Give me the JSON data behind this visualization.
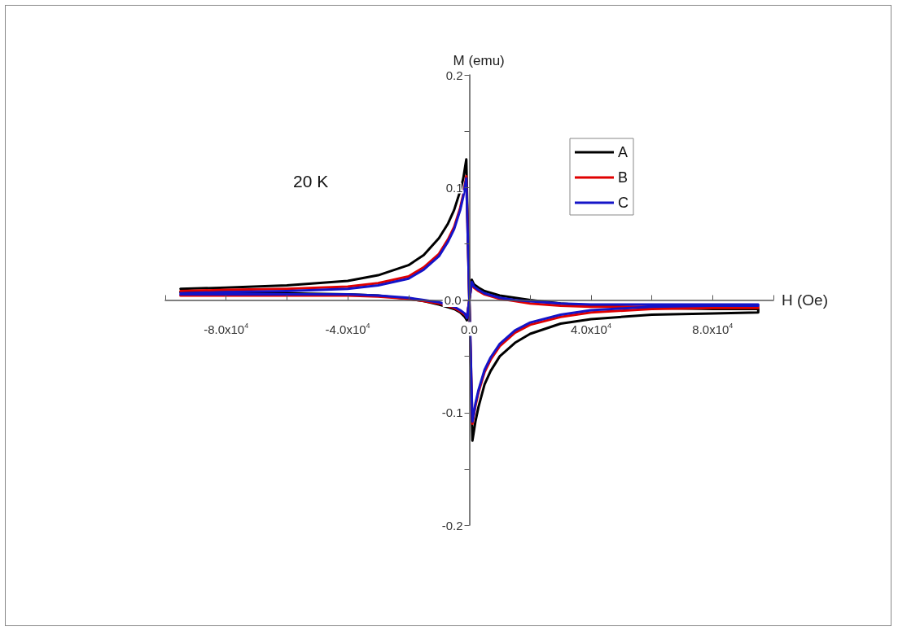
{
  "chart_data": {
    "type": "line",
    "xlabel": "H (Oe)",
    "ylabel": "M (emu)",
    "annotations": [
      "20 K"
    ],
    "xlim": [
      -100000,
      100000
    ],
    "xticks": [
      {
        "value": -100000,
        "label": null
      },
      {
        "value": -80000,
        "label": "-8.0x10$^{4}$"
      },
      {
        "value": -60000,
        "label": null
      },
      {
        "value": -40000,
        "label": "-4.0x10$^{4}$"
      },
      {
        "value": -20000,
        "label": null
      },
      {
        "value": 0,
        "label": "0.0"
      },
      {
        "value": 20000,
        "label": null
      },
      {
        "value": 40000,
        "label": "4.0x10$^{4}$"
      },
      {
        "value": 60000,
        "label": null
      },
      {
        "value": 80000,
        "label": "8.0x10$^{4}$"
      },
      {
        "value": 100000,
        "label": null
      }
    ],
    "ylim": [
      -0.2,
      0.2
    ],
    "yticks": [
      {
        "value": -0.2,
        "label": "-0.2"
      },
      {
        "value": -0.15,
        "label": null
      },
      {
        "value": -0.1,
        "label": "-0.1"
      },
      {
        "value": -0.05,
        "label": null
      },
      {
        "value": 0,
        "label": "0.0"
      },
      {
        "value": 0.05,
        "label": null
      },
      {
        "value": 0.1,
        "label": "0.1"
      },
      {
        "value": 0.15,
        "label": null
      },
      {
        "value": 0.2,
        "label": "0.2"
      }
    ],
    "x": [
      -95000,
      -80000,
      -60000,
      -40000,
      -30000,
      -20000,
      -15000,
      -10000,
      -7000,
      -5000,
      -3000,
      -2000,
      -1000,
      0,
      1000,
      2000,
      3000,
      5000,
      7000,
      10000,
      15000,
      20000,
      30000,
      40000,
      60000,
      80000,
      95000,
      95000,
      80000,
      60000,
      40000,
      30000,
      20000,
      15000,
      10000,
      5000,
      3000,
      1500,
      800,
      0,
      -800,
      -1500,
      -3000,
      -5000,
      -10000,
      -15000,
      -20000,
      -30000,
      -40000,
      -60000,
      -80000,
      -95000
    ],
    "series": [
      {
        "name": "A",
        "color": "#000000",
        "values": [
          0.01,
          0.011,
          0.013,
          0.017,
          0.022,
          0.031,
          0.04,
          0.055,
          0.068,
          0.08,
          0.097,
          0.108,
          0.125,
          0.0,
          -0.125,
          -0.108,
          -0.095,
          -0.075,
          -0.063,
          -0.05,
          -0.038,
          -0.03,
          -0.021,
          -0.017,
          -0.013,
          -0.012,
          -0.011,
          -0.008,
          -0.008,
          -0.007,
          -0.005,
          -0.003,
          0.0,
          0.002,
          0.004,
          0.008,
          0.011,
          0.014,
          0.018,
          0.0,
          -0.018,
          -0.015,
          -0.011,
          -0.008,
          -0.004,
          -0.001,
          0.001,
          0.004,
          0.005,
          0.006,
          0.007,
          0.007
        ]
      },
      {
        "name": "B",
        "color": "#e00000",
        "values": [
          0.008,
          0.009,
          0.01,
          0.012,
          0.015,
          0.021,
          0.029,
          0.041,
          0.054,
          0.065,
          0.082,
          0.094,
          0.11,
          0.0,
          -0.11,
          -0.094,
          -0.082,
          -0.064,
          -0.053,
          -0.041,
          -0.029,
          -0.022,
          -0.015,
          -0.011,
          -0.008,
          -0.007,
          -0.007,
          -0.006,
          -0.006,
          -0.006,
          -0.006,
          -0.005,
          -0.003,
          -0.001,
          0.001,
          0.005,
          0.008,
          0.011,
          0.015,
          0.0,
          -0.015,
          -0.013,
          -0.01,
          -0.007,
          -0.003,
          -0.001,
          0.001,
          0.003,
          0.004,
          0.004,
          0.004,
          0.004
        ]
      },
      {
        "name": "C",
        "color": "#1414c8",
        "values": [
          0.006,
          0.007,
          0.008,
          0.01,
          0.013,
          0.019,
          0.027,
          0.039,
          0.052,
          0.063,
          0.08,
          0.092,
          0.108,
          0.0,
          -0.108,
          -0.092,
          -0.08,
          -0.062,
          -0.051,
          -0.039,
          -0.027,
          -0.02,
          -0.013,
          -0.009,
          -0.006,
          -0.005,
          -0.005,
          -0.004,
          -0.004,
          -0.004,
          -0.004,
          -0.003,
          -0.001,
          0.0,
          0.002,
          0.006,
          0.009,
          0.012,
          0.016,
          0.0,
          -0.016,
          -0.012,
          -0.009,
          -0.006,
          -0.002,
          0.0,
          0.002,
          0.004,
          0.005,
          0.005,
          0.005,
          0.005
        ]
      }
    ],
    "legend": "top right",
    "marker": "none",
    "line_style": "solid"
  }
}
